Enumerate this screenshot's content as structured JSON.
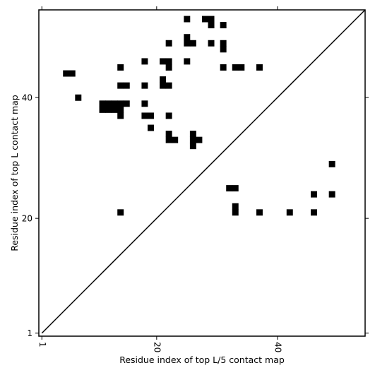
{
  "chart_data": {
    "type": "heatmap",
    "title": "",
    "xlabel": "Residue index of top L/5 contact map",
    "ylabel": "Residue index of top L contact map",
    "xlim": [
      0.5,
      54.5
    ],
    "ylim": [
      0.5,
      54.5
    ],
    "x_ticks": [
      1,
      20,
      40
    ],
    "y_ticks": [
      1,
      20,
      40
    ],
    "x_tick_rotation": -90,
    "diagonal_line": true,
    "colors": {
      "cell": "#000000",
      "background": "#ffffff",
      "line": "#000000"
    },
    "upper_triangle_cells": [
      [
        25,
        53
      ],
      [
        28,
        53
      ],
      [
        29,
        53
      ],
      [
        29,
        52
      ],
      [
        31,
        52
      ],
      [
        25,
        50
      ],
      [
        22,
        49
      ],
      [
        25,
        49
      ],
      [
        26,
        49
      ],
      [
        29,
        49
      ],
      [
        31,
        49
      ],
      [
        31,
        48
      ],
      [
        18,
        46
      ],
      [
        21,
        46
      ],
      [
        22,
        46
      ],
      [
        25,
        46
      ],
      [
        14,
        45
      ],
      [
        22,
        45
      ],
      [
        31,
        45
      ],
      [
        33,
        45
      ],
      [
        34,
        45
      ],
      [
        37,
        45
      ],
      [
        5,
        44
      ],
      [
        6,
        44
      ],
      [
        21,
        43
      ],
      [
        14,
        42
      ],
      [
        15,
        42
      ],
      [
        18,
        42
      ],
      [
        21,
        42
      ],
      [
        22,
        42
      ],
      [
        7,
        40
      ],
      [
        11,
        39
      ],
      [
        12,
        39
      ],
      [
        13,
        39
      ],
      [
        14,
        39
      ],
      [
        15,
        39
      ],
      [
        18,
        39
      ],
      [
        11,
        38
      ],
      [
        12,
        38
      ],
      [
        13,
        38
      ],
      [
        14,
        38
      ],
      [
        14,
        37
      ],
      [
        18,
        37
      ],
      [
        19,
        37
      ],
      [
        22,
        37
      ],
      [
        19,
        35
      ],
      [
        22,
        34
      ],
      [
        26,
        34
      ],
      [
        22,
        33
      ],
      [
        23,
        33
      ],
      [
        26,
        33
      ],
      [
        27,
        33
      ],
      [
        26,
        32
      ]
    ],
    "lower_triangle_cells": [
      [
        49,
        29
      ],
      [
        32,
        25
      ],
      [
        33,
        25
      ],
      [
        46,
        24
      ],
      [
        49,
        24
      ],
      [
        33,
        22
      ],
      [
        14,
        21
      ],
      [
        33,
        21
      ],
      [
        37,
        21
      ],
      [
        42,
        21
      ],
      [
        46,
        21
      ]
    ]
  }
}
